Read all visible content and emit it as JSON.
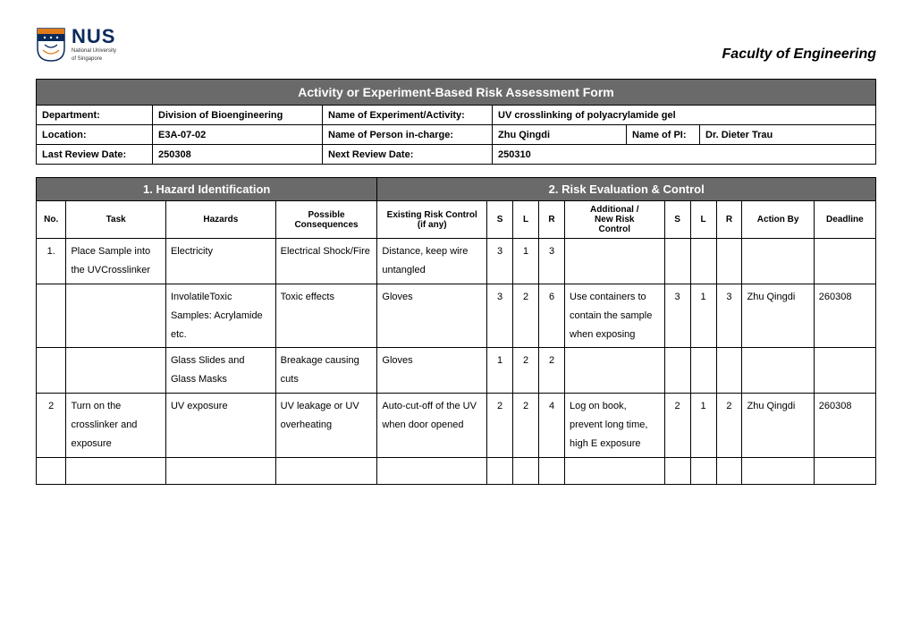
{
  "logo": {
    "letters": "NUS",
    "sub1": "National University",
    "sub2": "of Singapore"
  },
  "faculty": "Faculty of Engineering",
  "form_title": "Activity or Experiment-Based Risk Assessment Form",
  "meta": {
    "dept_label": "Department:",
    "dept": "Division of Bioengineering",
    "exp_label": "Name of Experiment/Activity:",
    "exp": "UV crosslinking of polyacrylamide gel",
    "loc_label": "Location:",
    "loc": "E3A-07-02",
    "pic_label": "Name of Person in-charge:",
    "pic": "Zhu Qingdi",
    "pi_label": "Name of PI:",
    "pi": "Dr. Dieter Trau",
    "last_label": "Last Review Date:",
    "last": "250308",
    "next_label": "Next Review Date:",
    "next": "250310"
  },
  "sections": {
    "hazard": "1. Hazard Identification",
    "risk": "2. Risk Evaluation & Control"
  },
  "cols": {
    "no": "No.",
    "task": "Task",
    "hazards": "Hazards",
    "cons": "Possible Consequences",
    "exist": "Existing Risk Control\n(if any)",
    "s": "S",
    "l": "L",
    "r": "R",
    "add": "Additional / New Risk Control",
    "action": "Action By",
    "deadline": "Deadline"
  },
  "rows": [
    {
      "no": "1.",
      "task": "Place Sample into the UVCrosslinker",
      "hazards": "Electricity",
      "cons": "Electrical Shock/Fire",
      "exist": "Distance, keep wire untangled",
      "s1": "3",
      "l1": "1",
      "r1": "3",
      "add": "",
      "s2": "",
      "l2": "",
      "r2": "",
      "action": "",
      "deadline": ""
    },
    {
      "no": "",
      "task": "",
      "hazards": "InvolatileToxic Samples: Acrylamide etc.",
      "cons": "Toxic effects",
      "exist": "Gloves",
      "s1": "3",
      "l1": "2",
      "r1": "6",
      "add": "Use containers to contain the sample when exposing",
      "s2": "3",
      "l2": "1",
      "r2": "3",
      "action": "Zhu Qingdi",
      "deadline": "260308"
    },
    {
      "no": "",
      "task": "",
      "hazards": "Glass Slides and Glass Masks",
      "cons": "Breakage causing cuts",
      "exist": "Gloves",
      "s1": "1",
      "l1": "2",
      "r1": "2",
      "add": "",
      "s2": "",
      "l2": "",
      "r2": "",
      "action": "",
      "deadline": ""
    },
    {
      "no": "2",
      "task": "Turn on the crosslinker and exposure",
      "hazards": "UV exposure",
      "cons": "UV leakage or UV overheating",
      "exist": "Auto-cut-off of the UV when door opened",
      "s1": "2",
      "l1": "2",
      "r1": "4",
      "add": "Log on book, prevent long time, high E exposure",
      "s2": "2",
      "l2": "1",
      "r2": "2",
      "action": "Zhu Qingdi",
      "deadline": "260308"
    },
    {
      "no": "",
      "task": "",
      "hazards": "",
      "cons": "",
      "exist": "",
      "s1": "",
      "l1": "",
      "r1": "",
      "add": "",
      "s2": "",
      "l2": "",
      "r2": "",
      "action": "",
      "deadline": ""
    }
  ]
}
